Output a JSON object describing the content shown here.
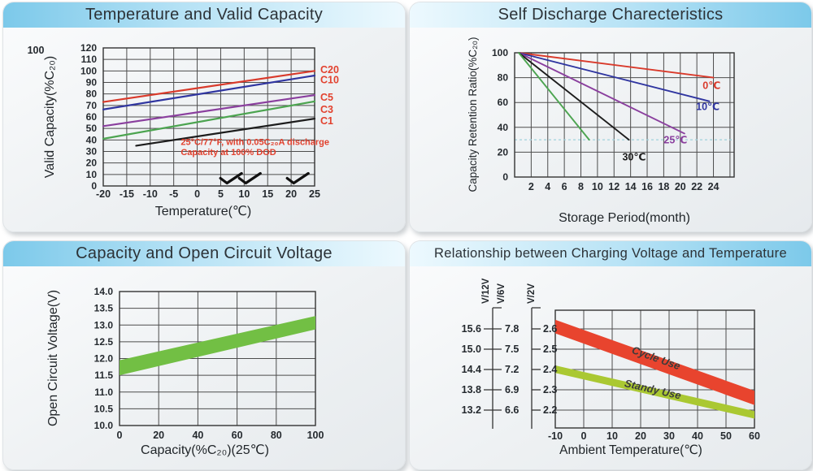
{
  "colors": {
    "titlebar_blue": "#7cc9ea",
    "titlebar_light": "#edf9fe",
    "grid": "#4d4d4d",
    "plot_border": "#333333",
    "text": "#2c3237",
    "annotation_red": "#e2412e",
    "guide_dashed": "#9fd2dc"
  },
  "chart_data": [
    {
      "type": "line",
      "title": "Temperature and Valid Capacity",
      "xlabel": "Temperature(℃)",
      "ylabel": "Valid Capacity(%C₂₀)",
      "corner_label": "100",
      "xlim": [
        -20,
        25
      ],
      "ylim": [
        0,
        120
      ],
      "xticks": [
        -20,
        -15,
        -10,
        -5,
        0,
        5,
        10,
        15,
        20,
        25
      ],
      "yticks": [
        0,
        10,
        20,
        30,
        40,
        50,
        60,
        70,
        80,
        90,
        100,
        110,
        120
      ],
      "grid": true,
      "series": [
        {
          "name": "C20",
          "color": "#d93a2b",
          "x": [
            -20,
            25
          ],
          "y": [
            73,
            100
          ]
        },
        {
          "name": "C10",
          "color": "#2f35a0",
          "x": [
            -20,
            25
          ],
          "y": [
            66.5,
            96
          ]
        },
        {
          "name": "C5",
          "color": "#8a3f9e",
          "x": [
            -20,
            25
          ],
          "y": [
            52,
            79
          ]
        },
        {
          "name": "C3",
          "color": "#4ca450",
          "x": [
            -20,
            25
          ],
          "y": [
            41,
            73.5
          ]
        },
        {
          "name": "C1",
          "color": "#1c1c1c",
          "x": [
            -13,
            25
          ],
          "y": [
            35,
            58.5
          ]
        }
      ],
      "series_label_color": "#e2412e",
      "series_label_y": [
        101,
        92,
        77,
        66.5,
        56.5
      ],
      "annotation": {
        "lines": [
          "25°C/77°F, with 0.05C₂₀A discharge",
          "Capacity at 100% DOD"
        ],
        "x": -3.5,
        "y": [
          35.5,
          27
        ],
        "color": "#e2412e"
      },
      "check_marks": {
        "x": [
          7.2,
          11.2,
          21.4
        ],
        "y": 6
      }
    },
    {
      "type": "line",
      "title": "Self Discharge Charecteristics",
      "xlabel": "Storage Period(month)",
      "ylabel": "Capacity Retention Ratio(%C₂₀)",
      "xlim": [
        0,
        26.5
      ],
      "ylim": [
        0,
        100
      ],
      "xticks": [
        2,
        4,
        6,
        8,
        10,
        12,
        14,
        16,
        18,
        20,
        22,
        24
      ],
      "grid_x": [
        2,
        4,
        6,
        8,
        10,
        12,
        14,
        16,
        18,
        20,
        22,
        24,
        26
      ],
      "yticks": [
        0,
        20,
        40,
        60,
        80,
        100
      ],
      "grid": true,
      "guide_line_y": 30,
      "series": [
        {
          "name": "0℃",
          "color": "#d93a2b",
          "x": [
            0.5,
            24
          ],
          "y": [
            100,
            80
          ],
          "label_at": [
            22.7,
            71
          ]
        },
        {
          "name": "10℃",
          "color": "#2f35a0",
          "x": [
            0.5,
            23.5
          ],
          "y": [
            100,
            61
          ],
          "label_at": [
            21.9,
            54
          ]
        },
        {
          "name": "25℃",
          "color": "#8a3f9e",
          "x": [
            0.5,
            20.5
          ],
          "y": [
            100,
            35
          ],
          "label_at": [
            18,
            27
          ]
        },
        {
          "name": "30℃",
          "color": "#1c1c1c",
          "x": [
            0.5,
            13.8
          ],
          "y": [
            100,
            30
          ],
          "label_at": [
            13,
            13.5
          ]
        },
        {
          "name": "",
          "color": "#4ca450",
          "x": [
            0.5,
            9
          ],
          "y": [
            100,
            30
          ]
        }
      ]
    },
    {
      "type": "band",
      "title": "Capacity and Open Circuit Voltage",
      "xlabel": "Capacity(%C₂₀)(25℃)",
      "ylabel": "Open Circuit Voltage(V)",
      "xlim": [
        0,
        100
      ],
      "ylim": [
        10.0,
        14.0
      ],
      "xticks": [
        0,
        20,
        40,
        60,
        80,
        100
      ],
      "yticks": [
        "10.0",
        "10.5",
        "11.0",
        "11.5",
        "12.0",
        "12.5",
        "13.0",
        "13.5",
        "14.0"
      ],
      "grid": true,
      "bands": [
        {
          "name": "",
          "color": "#72bf44",
          "x": [
            0,
            100
          ],
          "upper": [
            11.95,
            13.27
          ],
          "lower": [
            11.5,
            12.87
          ]
        }
      ]
    },
    {
      "type": "band",
      "title": "Relationship between Charging Voltage and Temperature",
      "xlabel": "Ambient Temperature(℃)",
      "xlim": [
        -10,
        60
      ],
      "ylim": [
        2.112,
        2.692
      ],
      "xticks": [
        -10,
        0,
        10,
        20,
        30,
        40,
        50,
        60
      ],
      "grid_x": [
        0,
        10,
        20,
        30,
        40,
        50
      ],
      "grid_y": [
        2.2,
        2.3,
        2.4,
        2.5,
        2.6
      ],
      "show_yticks": false,
      "voltage_axes": [
        {
          "name": "V/12V",
          "ticks": [
            "15.6",
            "15.0",
            "14.4",
            "13.8",
            "13.2"
          ]
        },
        {
          "name": "V/6V",
          "ticks": [
            "7.8",
            "7.5",
            "7.2",
            "6.9",
            "6.6"
          ]
        },
        {
          "name": "V/2V",
          "ticks": [
            "2.6",
            "2.5",
            "2.4",
            "2.3",
            "2.2"
          ]
        }
      ],
      "v2_tick_values": [
        2.6,
        2.5,
        2.4,
        2.3,
        2.2
      ],
      "bands": [
        {
          "name": "Cycle Use",
          "color": "#e8442e",
          "x": [
            -10,
            60
          ],
          "upper": [
            2.645,
            2.295
          ],
          "lower": [
            2.578,
            2.225
          ],
          "label_at": [
            25,
            2.44
          ],
          "label_color": "#3b3b3b"
        },
        {
          "name": "Standy Use",
          "color": "#aac832",
          "x": [
            -10,
            60
          ],
          "upper": [
            2.42,
            2.195
          ],
          "lower": [
            2.383,
            2.158
          ],
          "label_at": [
            24,
            2.285
          ],
          "label_color": "#3b3b3b"
        }
      ]
    }
  ]
}
